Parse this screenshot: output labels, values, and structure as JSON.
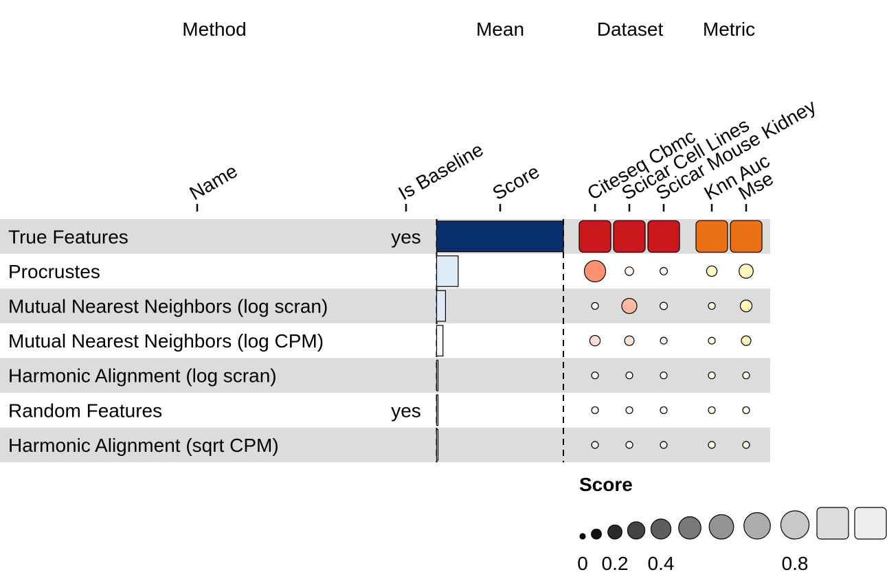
{
  "chart_data": {
    "type": "table",
    "groups": [
      {
        "id": "method",
        "title": "Method"
      },
      {
        "id": "mean",
        "title": "Mean"
      },
      {
        "id": "dataset",
        "title": "Dataset"
      },
      {
        "id": "metric",
        "title": "Metric"
      }
    ],
    "columns": [
      {
        "id": "name",
        "label": "Name",
        "group": "method"
      },
      {
        "id": "is_baseline",
        "label": "Is Baseline",
        "group": "method"
      },
      {
        "id": "score",
        "label": "Score",
        "group": "mean"
      },
      {
        "id": "citeseq_cbmc",
        "label": "Citeseq Cbmc",
        "group": "dataset"
      },
      {
        "id": "scicar_cell_lines",
        "label": "Scicar Cell Lines",
        "group": "dataset"
      },
      {
        "id": "scicar_mouse_kidney",
        "label": "Scicar Mouse Kidney",
        "group": "dataset"
      },
      {
        "id": "knn_auc",
        "label": "Knn Auc",
        "group": "metric"
      },
      {
        "id": "mse",
        "label": "Mse",
        "group": "metric"
      }
    ],
    "rows": [
      {
        "name": "True Features",
        "is_baseline": "yes",
        "score": 1.0,
        "dataset": [
          1.0,
          1.0,
          1.0
        ],
        "metric": [
          1.0,
          1.0
        ]
      },
      {
        "name": "Procrustes",
        "is_baseline": "",
        "score": 0.17,
        "dataset": [
          0.5,
          0.08,
          0.06
        ],
        "metric": [
          0.12,
          0.22
        ]
      },
      {
        "name": "Mutual Nearest Neighbors (log scran)",
        "is_baseline": "",
        "score": 0.07,
        "dataset": [
          0.04,
          0.25,
          0.06
        ],
        "metric": [
          0.05,
          0.15
        ]
      },
      {
        "name": "Mutual Nearest Neighbors (log CPM)",
        "is_baseline": "",
        "score": 0.05,
        "dataset": [
          0.12,
          0.1,
          0.04
        ],
        "metric": [
          0.03,
          0.1
        ]
      },
      {
        "name": "Harmonic Alignment (log scran)",
        "is_baseline": "",
        "score": 0.01,
        "dataset": [
          0.04,
          0.04,
          0.04
        ],
        "metric": [
          0.03,
          0.03
        ]
      },
      {
        "name": "Random Features",
        "is_baseline": "yes",
        "score": 0.005,
        "dataset": [
          0.03,
          0.03,
          0.03
        ],
        "metric": [
          0.02,
          0.02
        ]
      },
      {
        "name": "Harmonic Alignment (sqrt CPM)",
        "is_baseline": "",
        "score": 0.005,
        "dataset": [
          0.03,
          0.03,
          0.03
        ],
        "metric": [
          0.02,
          0.02
        ]
      }
    ],
    "legend": {
      "title": "Score",
      "tick_labels": [
        "0",
        "0.2",
        "0.4",
        "0.8"
      ],
      "tick_values": [
        0,
        0.2,
        0.4,
        0.8
      ],
      "steps": [
        0,
        0.1,
        0.2,
        0.3,
        0.4,
        0.5,
        0.6,
        0.7,
        0.8,
        0.9,
        1.0
      ]
    },
    "colors": {
      "row_stripe": "#dcdcdc",
      "bar_palette": [
        "#f7fbff",
        "#deebf7",
        "#c6dbef",
        "#9ecae1",
        "#6baed6",
        "#4292c6",
        "#2171b5",
        "#08519c",
        "#08306b"
      ],
      "dataset_palette": [
        "#fff5f0",
        "#fee0d2",
        "#fcbba1",
        "#fc9272",
        "#fb6a4a",
        "#ef3b2c",
        "#cb181d"
      ],
      "metric_palette": [
        "#ffffe5",
        "#fff7bc",
        "#fee391",
        "#fec44f",
        "#fe9929",
        "#ec7014"
      ],
      "legend_palette": [
        "#000000",
        "#111111",
        "#2a2a2a",
        "#444444",
        "#5e5e5e",
        "#787878",
        "#939393",
        "#adadad",
        "#c8c8c8",
        "#dcdcdc",
        "#eeeeee"
      ]
    }
  }
}
